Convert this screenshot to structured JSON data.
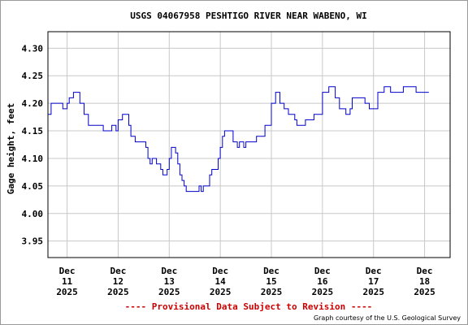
{
  "chart_data": {
    "type": "line",
    "title": "USGS 04067958 PESHTIGO RIVER NEAR WABENO, WI",
    "ylabel": "Gage height, feet",
    "xlabel": "",
    "ylim": [
      3.92,
      4.33
    ],
    "yticks": [
      "4.30",
      "4.25",
      "4.20",
      "4.15",
      "4.10",
      "4.05",
      "4.00",
      "3.95"
    ],
    "xlim": [
      "2025-12-10 15:00",
      "2025-12-18 12:00"
    ],
    "xticks": [
      {
        "month": "Dec",
        "day": "11",
        "year": "2025"
      },
      {
        "month": "Dec",
        "day": "12",
        "year": "2025"
      },
      {
        "month": "Dec",
        "day": "13",
        "year": "2025"
      },
      {
        "month": "Dec",
        "day": "14",
        "year": "2025"
      },
      {
        "month": "Dec",
        "day": "15",
        "year": "2025"
      },
      {
        "month": "Dec",
        "day": "16",
        "year": "2025"
      },
      {
        "month": "Dec",
        "day": "17",
        "year": "2025"
      },
      {
        "month": "Dec",
        "day": "18",
        "year": "2025"
      }
    ],
    "grid": true,
    "line_color": "#0000cc",
    "series": [
      {
        "x": [
          "2025-12-10 15:00",
          "2025-12-10 16:30",
          "2025-12-10 21:00",
          "2025-12-10 22:00",
          "2025-12-11 00:00",
          "2025-12-11 01:00",
          "2025-12-11 03:00",
          "2025-12-11 04:00",
          "2025-12-11 06:00",
          "2025-12-11 08:00",
          "2025-12-11 10:00",
          "2025-12-11 16:00",
          "2025-12-11 17:00",
          "2025-12-11 20:00",
          "2025-12-11 21:00",
          "2025-12-11 23:00",
          "2025-12-12 00:00",
          "2025-12-12 02:00",
          "2025-12-12 03:00",
          "2025-12-12 05:00",
          "2025-12-12 06:00",
          "2025-12-12 08:00",
          "2025-12-12 11:00",
          "2025-12-12 13:00",
          "2025-12-12 14:00",
          "2025-12-12 15:00",
          "2025-12-12 16:00",
          "2025-12-12 18:00",
          "2025-12-12 20:00",
          "2025-12-12 21:00",
          "2025-12-12 22:00",
          "2025-12-12 23:00",
          "2025-12-13 00:00",
          "2025-12-13 01:00",
          "2025-12-13 02:00",
          "2025-12-13 03:00",
          "2025-12-13 04:00",
          "2025-12-13 05:00",
          "2025-12-13 06:00",
          "2025-12-13 07:00",
          "2025-12-13 08:00",
          "2025-12-13 09:00",
          "2025-12-13 12:00",
          "2025-12-13 14:00",
          "2025-12-13 15:00",
          "2025-12-13 16:00",
          "2025-12-13 19:00",
          "2025-12-13 20:00",
          "2025-12-13 21:00",
          "2025-12-13 23:00",
          "2025-12-14 00:00",
          "2025-12-14 01:00",
          "2025-12-14 02:00",
          "2025-12-14 04:00",
          "2025-12-14 06:00",
          "2025-12-14 08:00",
          "2025-12-14 09:00",
          "2025-12-14 11:00",
          "2025-12-14 12:00",
          "2025-12-14 13:00",
          "2025-12-14 14:00",
          "2025-12-14 17:00",
          "2025-12-14 19:00",
          "2025-12-14 21:00",
          "2025-12-15 00:00",
          "2025-12-15 02:00",
          "2025-12-15 04:00",
          "2025-12-15 06:00",
          "2025-12-15 08:00",
          "2025-12-15 09:00",
          "2025-12-15 11:00",
          "2025-12-15 12:00",
          "2025-12-15 14:00",
          "2025-12-15 16:00",
          "2025-12-15 19:00",
          "2025-12-15 20:00",
          "2025-12-16 00:00",
          "2025-12-16 03:00",
          "2025-12-16 04:00",
          "2025-12-16 06:00",
          "2025-12-16 08:00",
          "2025-12-16 11:00",
          "2025-12-16 13:00",
          "2025-12-16 14:00",
          "2025-12-16 16:00",
          "2025-12-16 18:00",
          "2025-12-16 20:00",
          "2025-12-16 22:00",
          "2025-12-17 02:00",
          "2025-12-17 05:00",
          "2025-12-17 06:00",
          "2025-12-17 08:00",
          "2025-12-17 10:00",
          "2025-12-17 13:00",
          "2025-12-17 14:00",
          "2025-12-17 19:00",
          "2025-12-17 20:00",
          "2025-12-17 23:00",
          "2025-12-18 00:00",
          "2025-12-18 02:00"
        ],
        "y": [
          4.18,
          4.2,
          4.2,
          4.19,
          4.2,
          4.21,
          4.22,
          4.22,
          4.2,
          4.18,
          4.16,
          4.16,
          4.15,
          4.15,
          4.16,
          4.15,
          4.17,
          4.18,
          4.18,
          4.16,
          4.14,
          4.13,
          4.13,
          4.12,
          4.1,
          4.09,
          4.1,
          4.09,
          4.08,
          4.07,
          4.07,
          4.08,
          4.1,
          4.12,
          4.12,
          4.11,
          4.09,
          4.07,
          4.06,
          4.05,
          4.04,
          4.04,
          4.04,
          4.05,
          4.04,
          4.05,
          4.07,
          4.08,
          4.08,
          4.1,
          4.12,
          4.14,
          4.15,
          4.15,
          4.13,
          4.12,
          4.13,
          4.12,
          4.13,
          4.13,
          4.13,
          4.14,
          4.14,
          4.16,
          4.2,
          4.22,
          4.2,
          4.19,
          4.18,
          4.18,
          4.17,
          4.16,
          4.16,
          4.17,
          4.17,
          4.18,
          4.22,
          4.23,
          4.23,
          4.21,
          4.19,
          4.18,
          4.19,
          4.21,
          4.21,
          4.21,
          4.2,
          4.19,
          4.22,
          4.23,
          4.23,
          4.22,
          4.22,
          4.22,
          4.23,
          4.23,
          4.22,
          4.22,
          4.22,
          4.22
        ]
      }
    ]
  },
  "footer": {
    "provisional": "---- Provisional Data Subject to Revision ----",
    "provisional_color": "#cc0000",
    "credit": "Graph courtesy of the U.S. Geological Survey"
  }
}
